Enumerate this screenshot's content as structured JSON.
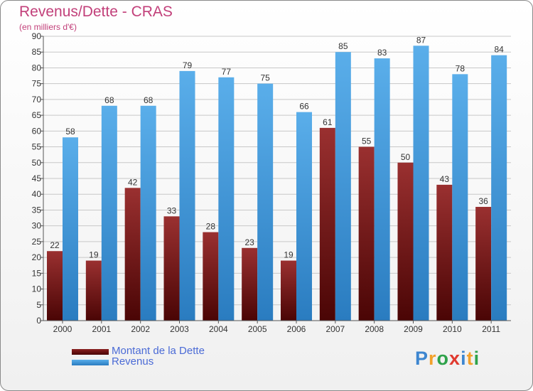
{
  "chart_data": {
    "type": "bar",
    "title": "Revenus/Dette - CRAS",
    "subtitle": "(en milliers d'€)",
    "categories": [
      "2000",
      "2001",
      "2002",
      "2003",
      "2004",
      "2005",
      "2006",
      "2007",
      "2008",
      "2009",
      "2010",
      "2011"
    ],
    "series": [
      {
        "name": "Montant de la Dette",
        "color": "#7a1616",
        "values": [
          22,
          19,
          42,
          33,
          28,
          23,
          19,
          61,
          55,
          50,
          43,
          36
        ]
      },
      {
        "name": "Revenus",
        "color": "#4a9fe2",
        "values": [
          58,
          68,
          68,
          79,
          77,
          75,
          66,
          85,
          83,
          87,
          78,
          84
        ]
      }
    ],
    "ylim": [
      0,
      90
    ],
    "ytick_step": 5,
    "grid": true,
    "legend_position": "bottom-left",
    "data_labels": true
  },
  "legend": {
    "items": [
      {
        "label": "Montant de la Dette",
        "color": "#7a1616"
      },
      {
        "label": "Revenus",
        "color": "#4a9fe2"
      }
    ]
  },
  "logo": {
    "letters": [
      "P",
      "r",
      "o",
      "x",
      "i",
      "t",
      "i"
    ],
    "colors": [
      "#3d86d0",
      "#f2a12b",
      "#2ea24a",
      "#e03a2f",
      "#3d86d0",
      "#f2a12b",
      "#2ea24a"
    ]
  }
}
